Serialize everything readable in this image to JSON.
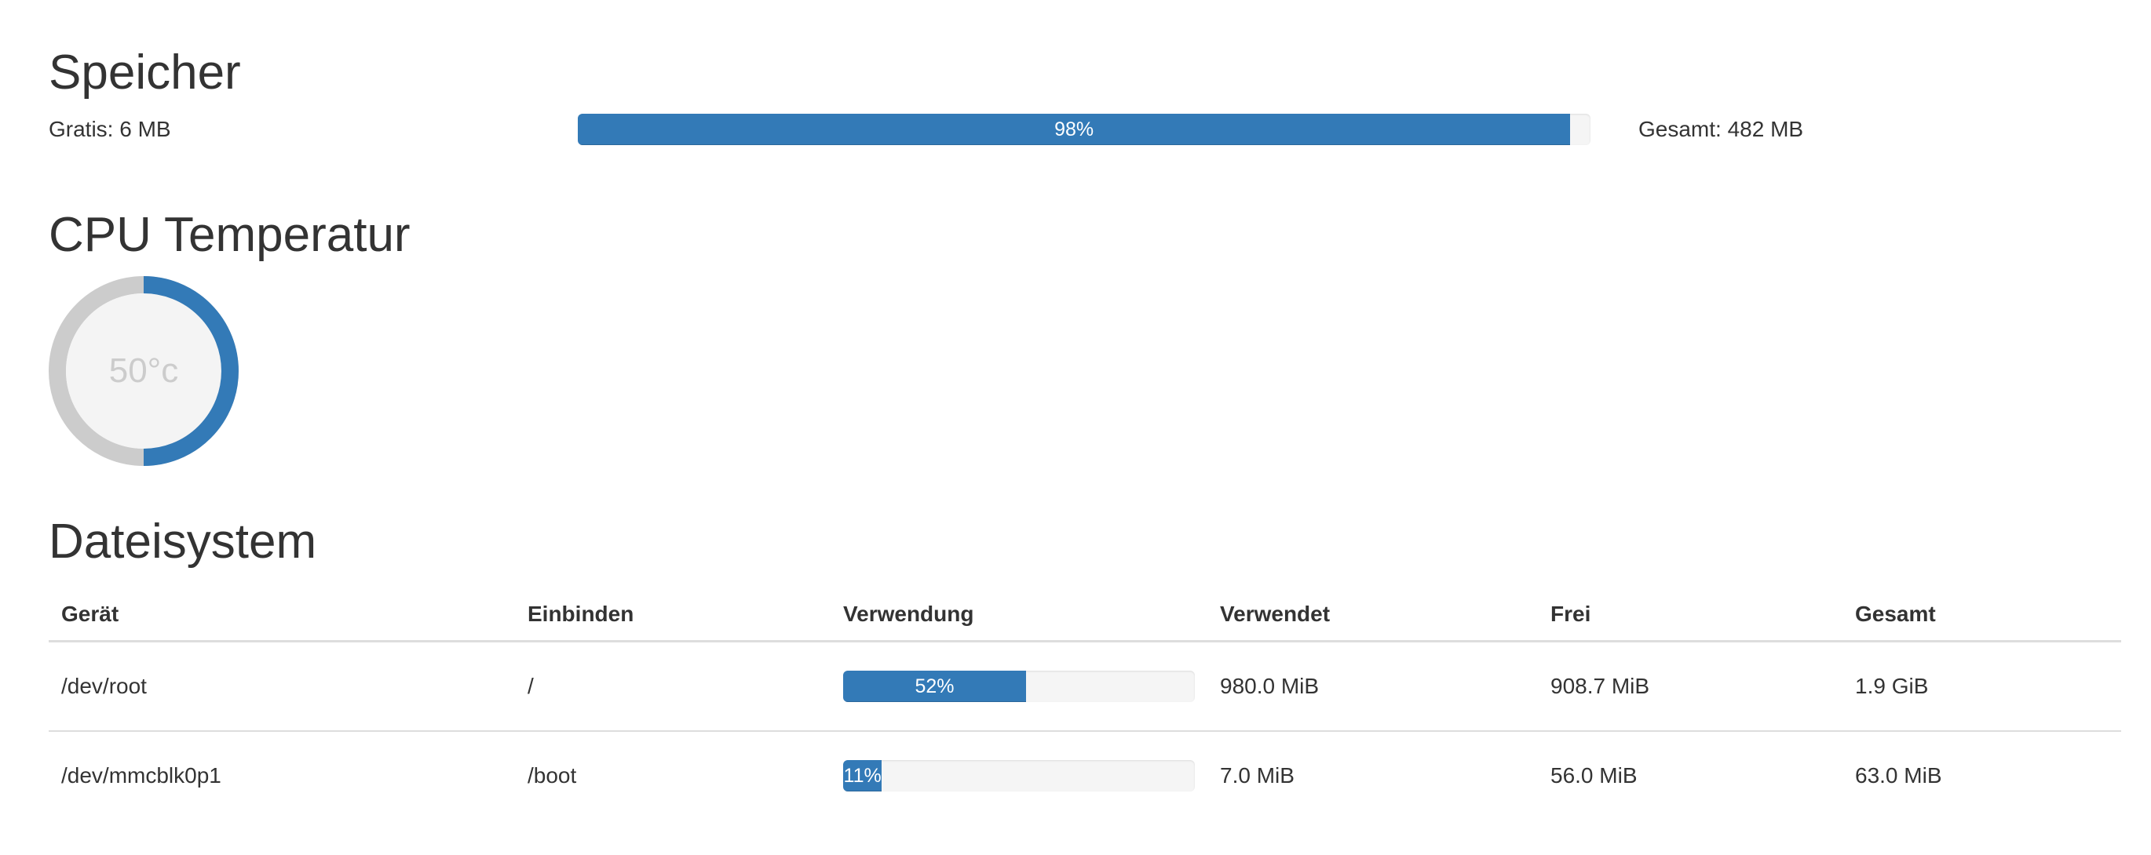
{
  "memory": {
    "title": "Speicher",
    "free_label": "Gratis: 6 MB",
    "total_label": "Gesamt: 482 MB",
    "usage_percent": 98,
    "usage_label": "98%"
  },
  "cpu": {
    "title": "CPU Temperatur",
    "temperature_label": "50°c",
    "gauge_fraction": 0.5,
    "colors": {
      "fill": "#337ab7",
      "track": "#cccccc",
      "inner": "#f4f4f4"
    }
  },
  "filesystem": {
    "title": "Dateisystem",
    "columns": [
      "Gerät",
      "Einbinden",
      "Verwendung",
      "Verwendet",
      "Frei",
      "Gesamt"
    ],
    "rows": [
      {
        "device": "/dev/root",
        "mount": "/",
        "usage_percent": 52,
        "usage_label": "52%",
        "used": "980.0 MiB",
        "free": "908.7 MiB",
        "total": "1.9 GiB"
      },
      {
        "device": "/dev/mmcblk0p1",
        "mount": "/boot",
        "usage_percent": 11,
        "usage_label": "11%",
        "used": "7.0 MiB",
        "free": "56.0 MiB",
        "total": "63.0 MiB"
      }
    ]
  },
  "colors": {
    "accent": "#337ab7",
    "text": "#333333",
    "border": "#dddddd"
  }
}
